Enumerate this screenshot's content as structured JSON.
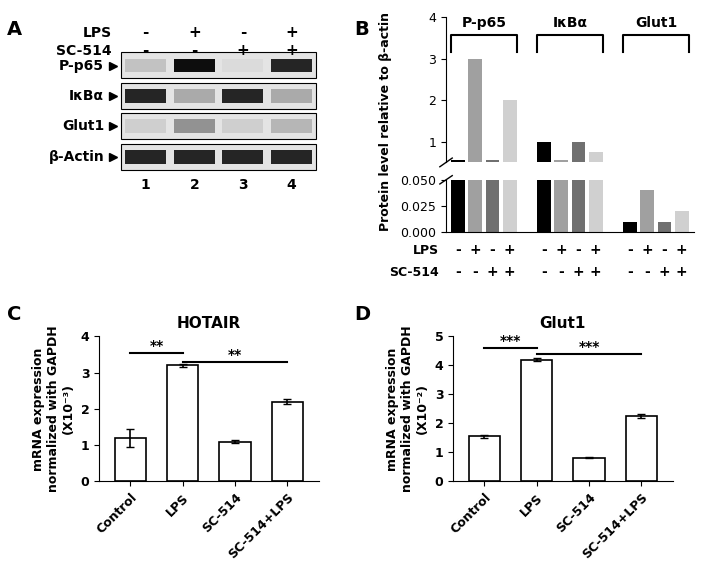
{
  "panel_labels": [
    "A",
    "B",
    "C",
    "D"
  ],
  "blot": {
    "conditions": [
      {
        "name": "LPS",
        "signs": [
          "-",
          "+",
          "-",
          "+"
        ]
      },
      {
        "name": "SC-514",
        "signs": [
          "-",
          "-",
          "+",
          "+"
        ]
      }
    ],
    "bands": [
      {
        "label": "P-p65",
        "intensity": [
          0.25,
          1.0,
          0.15,
          0.9
        ]
      },
      {
        "label": "IκBα",
        "intensity": [
          0.9,
          0.35,
          0.9,
          0.35
        ]
      },
      {
        "label": "Glut1",
        "intensity": [
          0.2,
          0.45,
          0.2,
          0.3
        ]
      },
      {
        "label": "β-Actin",
        "intensity": [
          0.9,
          0.9,
          0.9,
          0.9
        ]
      }
    ],
    "lanes": [
      1,
      2,
      3,
      4
    ]
  },
  "chart_data": [
    {
      "type": "bar",
      "ylabel": "Protein level relative to β-actin",
      "categories": [
        "P-p65",
        "IκBα",
        "Glut1"
      ],
      "series": [
        {
          "color": "#000000",
          "values": [
            0.55,
            1.0,
            0.01
          ]
        },
        {
          "color": "#a0a0a0",
          "values": [
            3.0,
            0.55,
            0.04
          ]
        },
        {
          "color": "#707070",
          "values": [
            0.55,
            1.0,
            0.01
          ]
        },
        {
          "color": "#d0d0d0",
          "values": [
            2.0,
            0.75,
            0.02
          ]
        }
      ],
      "conditions": [
        {
          "name": "LPS",
          "signs": [
            "-",
            "+",
            "-",
            "+"
          ]
        },
        {
          "name": "SC-514",
          "signs": [
            "-",
            "-",
            "+",
            "+"
          ]
        }
      ],
      "axis_segments": [
        {
          "ylim": [
            0.5,
            4
          ],
          "yticks": [
            1,
            2,
            3,
            4
          ]
        },
        {
          "ylim": [
            0,
            0.05
          ],
          "yticks": [
            {
              "value": 0,
              "label": "0.000"
            },
            {
              "value": 0.025,
              "label": "0.025"
            },
            {
              "value": 0.05,
              "label": "0.050"
            }
          ]
        }
      ],
      "tick_labels": "y"
    },
    {
      "type": "bar",
      "title": "HOTAIR",
      "ylabel": "mRNA expression\nnormalized with GAPDH\n(X10⁻³)",
      "categories": [
        "Control",
        "LPS",
        "SC-514",
        "SC-514+LPS"
      ],
      "values": [
        1.2,
        3.2,
        1.1,
        2.2
      ],
      "errors": [
        0.25,
        0.05,
        0.05,
        0.07
      ],
      "color": "#ffffff",
      "ylim": [
        0,
        4
      ],
      "yticks": [
        0,
        1,
        2,
        3,
        4
      ],
      "significance": [
        {
          "from": "Control",
          "to": "LPS",
          "label": "**",
          "y": 3.55
        },
        {
          "from": "LPS",
          "to": "SC-514+LPS",
          "label": "**",
          "y": 3.3
        }
      ]
    },
    {
      "type": "bar",
      "title": "Glut1",
      "ylabel": "mRNA expression\nnormalized with GAPDH\n(X10⁻²)",
      "categories": [
        "Control",
        "LPS",
        "SC-514",
        "SC-514+LPS"
      ],
      "values": [
        1.55,
        4.2,
        0.82,
        2.25
      ],
      "errors": [
        0.05,
        0.05,
        0.02,
        0.08
      ],
      "color": "#ffffff",
      "ylim": [
        0,
        5
      ],
      "yticks": [
        0,
        1,
        2,
        3,
        4,
        5
      ],
      "significance": [
        {
          "from": "Control",
          "to": "LPS",
          "label": "***",
          "y": 4.6
        },
        {
          "from": "LPS",
          "to": "SC-514+LPS",
          "label": "***",
          "y": 4.4
        }
      ]
    }
  ]
}
